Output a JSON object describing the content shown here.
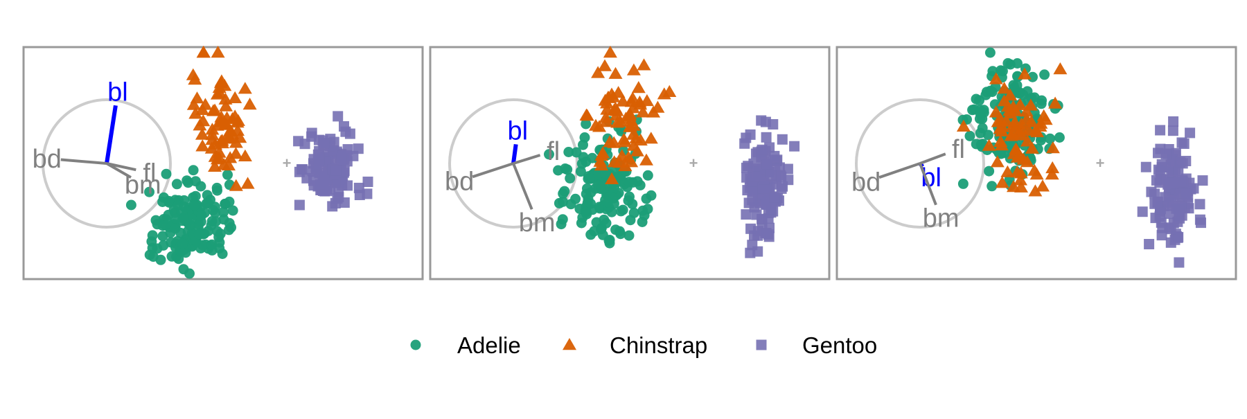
{
  "colors": {
    "Adelie": "#1b9e77",
    "Chinstrap": "#d95f02",
    "Gentoo": "#7570b3",
    "axis_highlight": "#0000ff",
    "axis_default": "#808080",
    "frame": "#999999",
    "circle": "#cccccc",
    "center_marker": "#aaaaaa"
  },
  "legend": {
    "items": [
      {
        "label": "Adelie",
        "shape": "circle"
      },
      {
        "label": "Chinstrap",
        "shape": "triangle"
      },
      {
        "label": "Gentoo",
        "shape": "square"
      }
    ]
  },
  "chart_data": [
    {
      "type": "scatter",
      "projection_axes": [
        {
          "label": "bl",
          "x": 0.14,
          "y": 0.91,
          "highlight": true
        },
        {
          "label": "bd",
          "x": -0.72,
          "y": 0.06,
          "highlight": false
        },
        {
          "label": "fl",
          "x": 0.46,
          "y": -0.1,
          "highlight": false
        },
        {
          "label": "bm",
          "x": 0.38,
          "y": -0.22,
          "highlight": false
        }
      ],
      "series": [
        {
          "name": "Adelie",
          "shape": "circle",
          "count": 146,
          "center": [
            -0.95,
            -0.6
          ],
          "spread": [
            0.26,
            0.25
          ]
        },
        {
          "name": "Chinstrap",
          "shape": "triangle",
          "count": 68,
          "center": [
            -0.68,
            0.4
          ],
          "spread": [
            0.16,
            0.38
          ]
        },
        {
          "name": "Gentoo",
          "shape": "square",
          "count": 119,
          "center": [
            0.45,
            -0.05
          ],
          "spread": [
            0.18,
            0.23
          ]
        }
      ]
    },
    {
      "type": "scatter",
      "projection_axes": [
        {
          "label": "bl",
          "x": 0.04,
          "y": 0.3,
          "highlight": true
        },
        {
          "label": "fl",
          "x": 0.42,
          "y": 0.13,
          "highlight": false
        },
        {
          "label": "bd",
          "x": -0.64,
          "y": -0.21,
          "highlight": false
        },
        {
          "label": "bm",
          "x": 0.29,
          "y": -0.72,
          "highlight": false
        }
      ],
      "series": [
        {
          "name": "Adelie",
          "shape": "circle",
          "count": 146,
          "center": [
            -0.9,
            -0.25
          ],
          "spread": [
            0.28,
            0.35
          ]
        },
        {
          "name": "Chinstrap",
          "shape": "triangle",
          "count": 68,
          "center": [
            -0.75,
            0.48
          ],
          "spread": [
            0.22,
            0.33
          ]
        },
        {
          "name": "Gentoo",
          "shape": "square",
          "count": 119,
          "center": [
            0.7,
            -0.2
          ],
          "spread": [
            0.14,
            0.4
          ]
        }
      ]
    },
    {
      "type": "scatter",
      "projection_axes": [
        {
          "label": "bl",
          "x": 0.04,
          "y": -0.05,
          "highlight": true
        },
        {
          "label": "fl",
          "x": 0.4,
          "y": 0.15,
          "highlight": false
        },
        {
          "label": "bd",
          "x": -0.64,
          "y": -0.22,
          "highlight": false
        },
        {
          "label": "bm",
          "x": 0.25,
          "y": -0.65,
          "highlight": false
        }
      ],
      "series": [
        {
          "name": "Adelie",
          "shape": "circle",
          "count": 146,
          "center": [
            -0.9,
            0.45
          ],
          "spread": [
            0.28,
            0.35
          ]
        },
        {
          "name": "Chinstrap",
          "shape": "triangle",
          "count": 68,
          "center": [
            -0.85,
            0.3
          ],
          "spread": [
            0.22,
            0.38
          ]
        },
        {
          "name": "Gentoo",
          "shape": "square",
          "count": 119,
          "center": [
            0.75,
            -0.25
          ],
          "spread": [
            0.14,
            0.4
          ]
        }
      ]
    }
  ]
}
